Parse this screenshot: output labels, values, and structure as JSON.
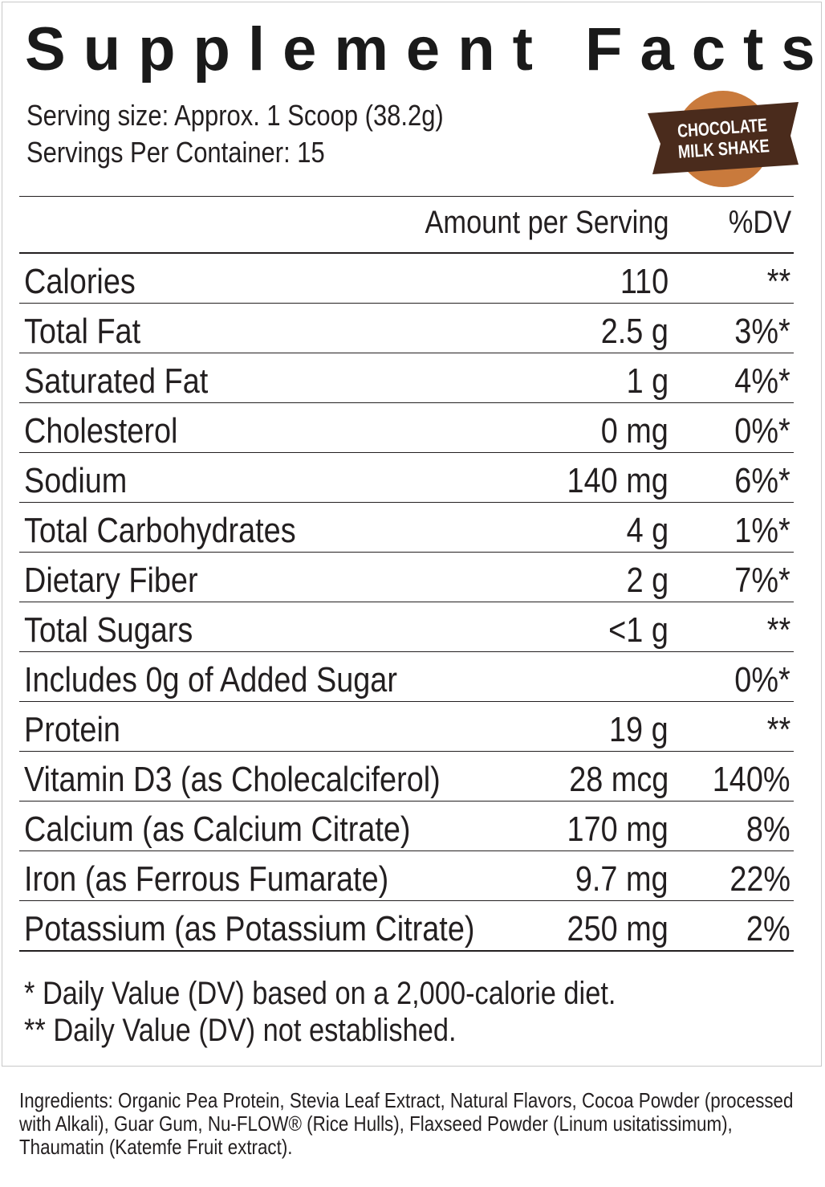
{
  "title": "Supplement Facts",
  "serving_size": "Serving size: Approx. 1 Scoop (38.2g)",
  "servings_per_container": "Servings Per Container: 15",
  "badge": {
    "line1": "CHOCOLATE",
    "line2": "MILK SHAKE",
    "circle_color": "#c97a3c",
    "ribbon_color": "#4a2b1c",
    "text_color": "#ffffff"
  },
  "header": {
    "amount": "Amount per Serving",
    "dv": "%DV"
  },
  "rows": [
    {
      "name": "Calories",
      "amount": "110",
      "dv": "**"
    },
    {
      "name": "Total Fat",
      "amount": "2.5 g",
      "dv": "3%*"
    },
    {
      "name": "Saturated Fat",
      "amount": "1 g",
      "dv": "4%*"
    },
    {
      "name": "Cholesterol",
      "amount": "0 mg",
      "dv": "0%*"
    },
    {
      "name": "Sodium",
      "amount": "140 mg",
      "dv": "6%*"
    },
    {
      "name": "Total Carbohydrates",
      "amount": "4 g",
      "dv": "1%*"
    },
    {
      "name": "Dietary Fiber",
      "amount": "2 g",
      "dv": "7%*"
    },
    {
      "name": "Total Sugars",
      "amount": "<1 g",
      "dv": "**"
    },
    {
      "name": "Includes 0g of Added Sugar",
      "amount": "",
      "dv": "0%*"
    },
    {
      "name": "Protein",
      "amount": "19 g",
      "dv": "**"
    },
    {
      "name": "Vitamin D3 (as Cholecalciferol)",
      "amount": "28 mcg",
      "dv": "140%"
    },
    {
      "name": "Calcium (as Calcium Citrate)",
      "amount": "170 mg",
      "dv": "8%"
    },
    {
      "name": "Iron (as Ferrous Fumarate)",
      "amount": "9.7 mg",
      "dv": "22%"
    },
    {
      "name": "Potassium (as Potassium Citrate)",
      "amount": "250 mg",
      "dv": "2%"
    }
  ],
  "footnotes": [
    "*  Daily Value (DV) based on a 2,000-calorie diet.",
    "** Daily Value (DV) not established."
  ],
  "ingredients": "Ingredients: Organic Pea Protein, Stevia Leaf Extract, Natural Flavors, Cocoa Powder (processed with Alkali), Guar Gum, Nu-FLOW® (Rice Hulls), Flaxseed Powder (Linum usitatissimum), Thaumatin (Katemfe Fruit extract)."
}
